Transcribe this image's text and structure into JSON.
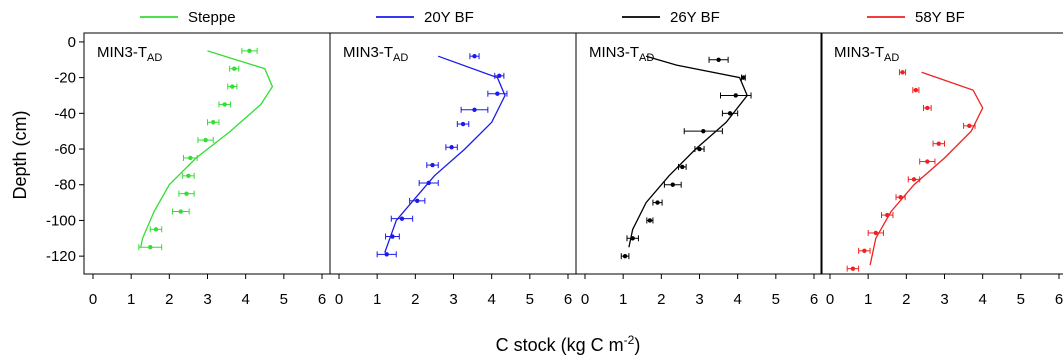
{
  "chart_data": {
    "type": "line",
    "ylabel": "Depth (cm)",
    "xlabel_main": "C stock (kg C m",
    "xlabel_sup": "-2",
    "xlabel_end": ")",
    "xlim": [
      0,
      6
    ],
    "ylim": [
      -130,
      5
    ],
    "xticks": [
      "0",
      "1",
      "2",
      "3",
      "4",
      "5",
      "6"
    ],
    "yticks": [
      "0",
      "-20",
      "-40",
      "-60",
      "-80",
      "-100",
      "-120"
    ],
    "grid": false,
    "legend_position": "top",
    "panel_label_main": "MIN3-T",
    "panel_label_sub": "AD",
    "panels": [
      {
        "series_name": "Steppe",
        "color": "#33dd33",
        "line": {
          "x": [
            3.0,
            4.5,
            4.7,
            4.4,
            3.6,
            2.7,
            2.0,
            1.6,
            1.3,
            1.25
          ],
          "y": [
            -5,
            -15,
            -25,
            -35,
            -50,
            -65,
            -80,
            -95,
            -110,
            -115
          ]
        },
        "points": {
          "x": [
            4.1,
            3.7,
            3.65,
            3.45,
            3.15,
            2.95,
            2.55,
            2.5,
            2.45,
            2.3,
            1.65,
            1.5
          ],
          "y": [
            -5,
            -15,
            -25,
            -35,
            -45,
            -55,
            -65,
            -75,
            -85,
            -95,
            -105,
            -115
          ],
          "err": [
            0.2,
            0.12,
            0.12,
            0.15,
            0.15,
            0.2,
            0.18,
            0.15,
            0.2,
            0.22,
            0.15,
            0.3
          ]
        }
      },
      {
        "series_name": "20Y BF",
        "color": "#1a1aee",
        "line": {
          "x": [
            2.6,
            4.15,
            4.35,
            4.0,
            3.3,
            2.5,
            1.9,
            1.5,
            1.25,
            1.2
          ],
          "y": [
            -8,
            -20,
            -30,
            -45,
            -60,
            -75,
            -90,
            -100,
            -115,
            -118
          ]
        },
        "points": {
          "x": [
            3.55,
            4.2,
            4.15,
            3.55,
            3.25,
            2.95,
            2.45,
            2.35,
            2.05,
            1.65,
            1.4,
            1.25
          ],
          "y": [
            -8,
            -19,
            -29,
            -38,
            -46,
            -59,
            -69,
            -79,
            -89,
            -99,
            -109,
            -119
          ],
          "err": [
            0.12,
            0.12,
            0.25,
            0.35,
            0.15,
            0.15,
            0.15,
            0.25,
            0.2,
            0.28,
            0.18,
            0.25
          ]
        }
      },
      {
        "series_name": "26Y BF",
        "color": "#000000",
        "line": {
          "x": [
            1.6,
            2.4,
            4.05,
            4.25,
            3.7,
            2.9,
            2.2,
            1.6,
            1.25,
            1.15
          ],
          "y": [
            -8,
            -13,
            -20,
            -30,
            -45,
            -60,
            -75,
            -90,
            -105,
            -115
          ]
        },
        "points": {
          "x": [
            3.5,
            4.15,
            3.95,
            3.8,
            3.1,
            3.0,
            2.55,
            2.3,
            1.9,
            1.7,
            1.25,
            1.05
          ],
          "y": [
            -10,
            -20,
            -30,
            -40,
            -50,
            -60,
            -70,
            -80,
            -90,
            -100,
            -110,
            -120
          ],
          "err": [
            0.25,
            0.05,
            0.4,
            0.2,
            0.5,
            0.12,
            0.1,
            0.22,
            0.12,
            0.08,
            0.15,
            0.1
          ]
        }
      },
      {
        "series_name": "58Y BF",
        "color": "#ee2222",
        "line": {
          "x": [
            2.4,
            3.75,
            4.0,
            3.7,
            3.0,
            2.2,
            1.6,
            1.2,
            1.05
          ],
          "y": [
            -17,
            -27,
            -37,
            -50,
            -65,
            -80,
            -95,
            -110,
            -125
          ]
        },
        "points": {
          "x": [
            1.9,
            2.25,
            2.55,
            3.65,
            2.85,
            2.55,
            2.2,
            1.85,
            1.5,
            1.2,
            0.9,
            0.6
          ],
          "y": [
            -17,
            -27,
            -37,
            -47,
            -57,
            -67,
            -77,
            -87,
            -97,
            -107,
            -117,
            -127
          ],
          "err": [
            0.08,
            0.08,
            0.1,
            0.15,
            0.15,
            0.2,
            0.15,
            0.12,
            0.15,
            0.2,
            0.15,
            0.15
          ]
        }
      }
    ]
  }
}
